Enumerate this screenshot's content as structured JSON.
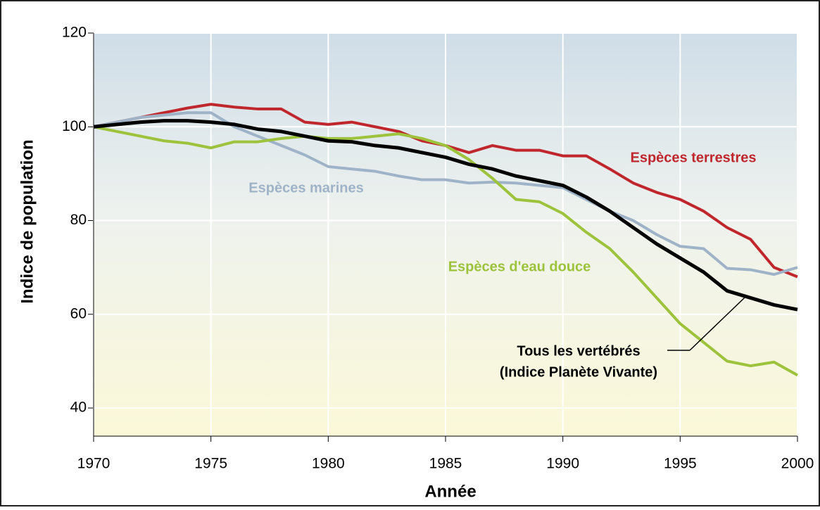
{
  "chart_data": {
    "type": "line",
    "xlabel": "Année",
    "ylabel": "Indice de population",
    "x": [
      1970,
      1971,
      1972,
      1973,
      1974,
      1975,
      1976,
      1977,
      1978,
      1979,
      1980,
      1981,
      1982,
      1983,
      1984,
      1985,
      1986,
      1987,
      1988,
      1989,
      1990,
      1991,
      1992,
      1993,
      1994,
      1995,
      1996,
      1997,
      1998,
      1999,
      2000
    ],
    "series": [
      {
        "name": "Espèces terrestres",
        "color": "#c0272d",
        "values": [
          100,
          101,
          102,
          103,
          104,
          104.8,
          104.2,
          103.8,
          103.8,
          101,
          100.5,
          101,
          100,
          99,
          97,
          96,
          94.5,
          96,
          95,
          95,
          93.8,
          93.8,
          91,
          88,
          86,
          84.5,
          82,
          78.5,
          76,
          70,
          68
        ]
      },
      {
        "name": "Espèces marines",
        "color": "#9fb3c8",
        "values": [
          100,
          101,
          102,
          102.5,
          103,
          103,
          100,
          98,
          96,
          94,
          91.5,
          91,
          90.5,
          89.5,
          88.7,
          88.7,
          88,
          88.2,
          88,
          87.5,
          87,
          84.5,
          82,
          80,
          77,
          74.5,
          74,
          69.8,
          69.5,
          68.5,
          70
        ]
      },
      {
        "name": "Espèces d'eau douce",
        "color": "#9dc23b",
        "values": [
          100,
          99,
          98,
          97,
          96.5,
          95.5,
          96.8,
          96.8,
          97.5,
          98,
          97.5,
          97.5,
          98,
          98.5,
          97.5,
          96,
          93,
          89,
          84.5,
          84,
          81.5,
          77.5,
          74,
          69,
          63.5,
          58,
          54,
          50,
          49,
          49.8,
          47
        ]
      },
      {
        "name": "Tous les vertébrés",
        "color": "#000000",
        "values": [
          100,
          100.5,
          101,
          101.3,
          101.3,
          101,
          100.5,
          99.5,
          99,
          98,
          97,
          96.8,
          96,
          95.5,
          94.5,
          93.5,
          92,
          91,
          89.5,
          88.5,
          87.5,
          85,
          82,
          78.5,
          75,
          72,
          69,
          65,
          63.5,
          62,
          61
        ]
      }
    ],
    "annotation": "(Indice Planète Vivante)",
    "xlim": [
      1970,
      2000
    ],
    "xticks": [
      1970,
      1975,
      1980,
      1985,
      1990,
      1995,
      2000
    ],
    "ylim": [
      34,
      120
    ],
    "yticks": [
      40,
      60,
      80,
      100,
      120
    ],
    "grid": true
  }
}
